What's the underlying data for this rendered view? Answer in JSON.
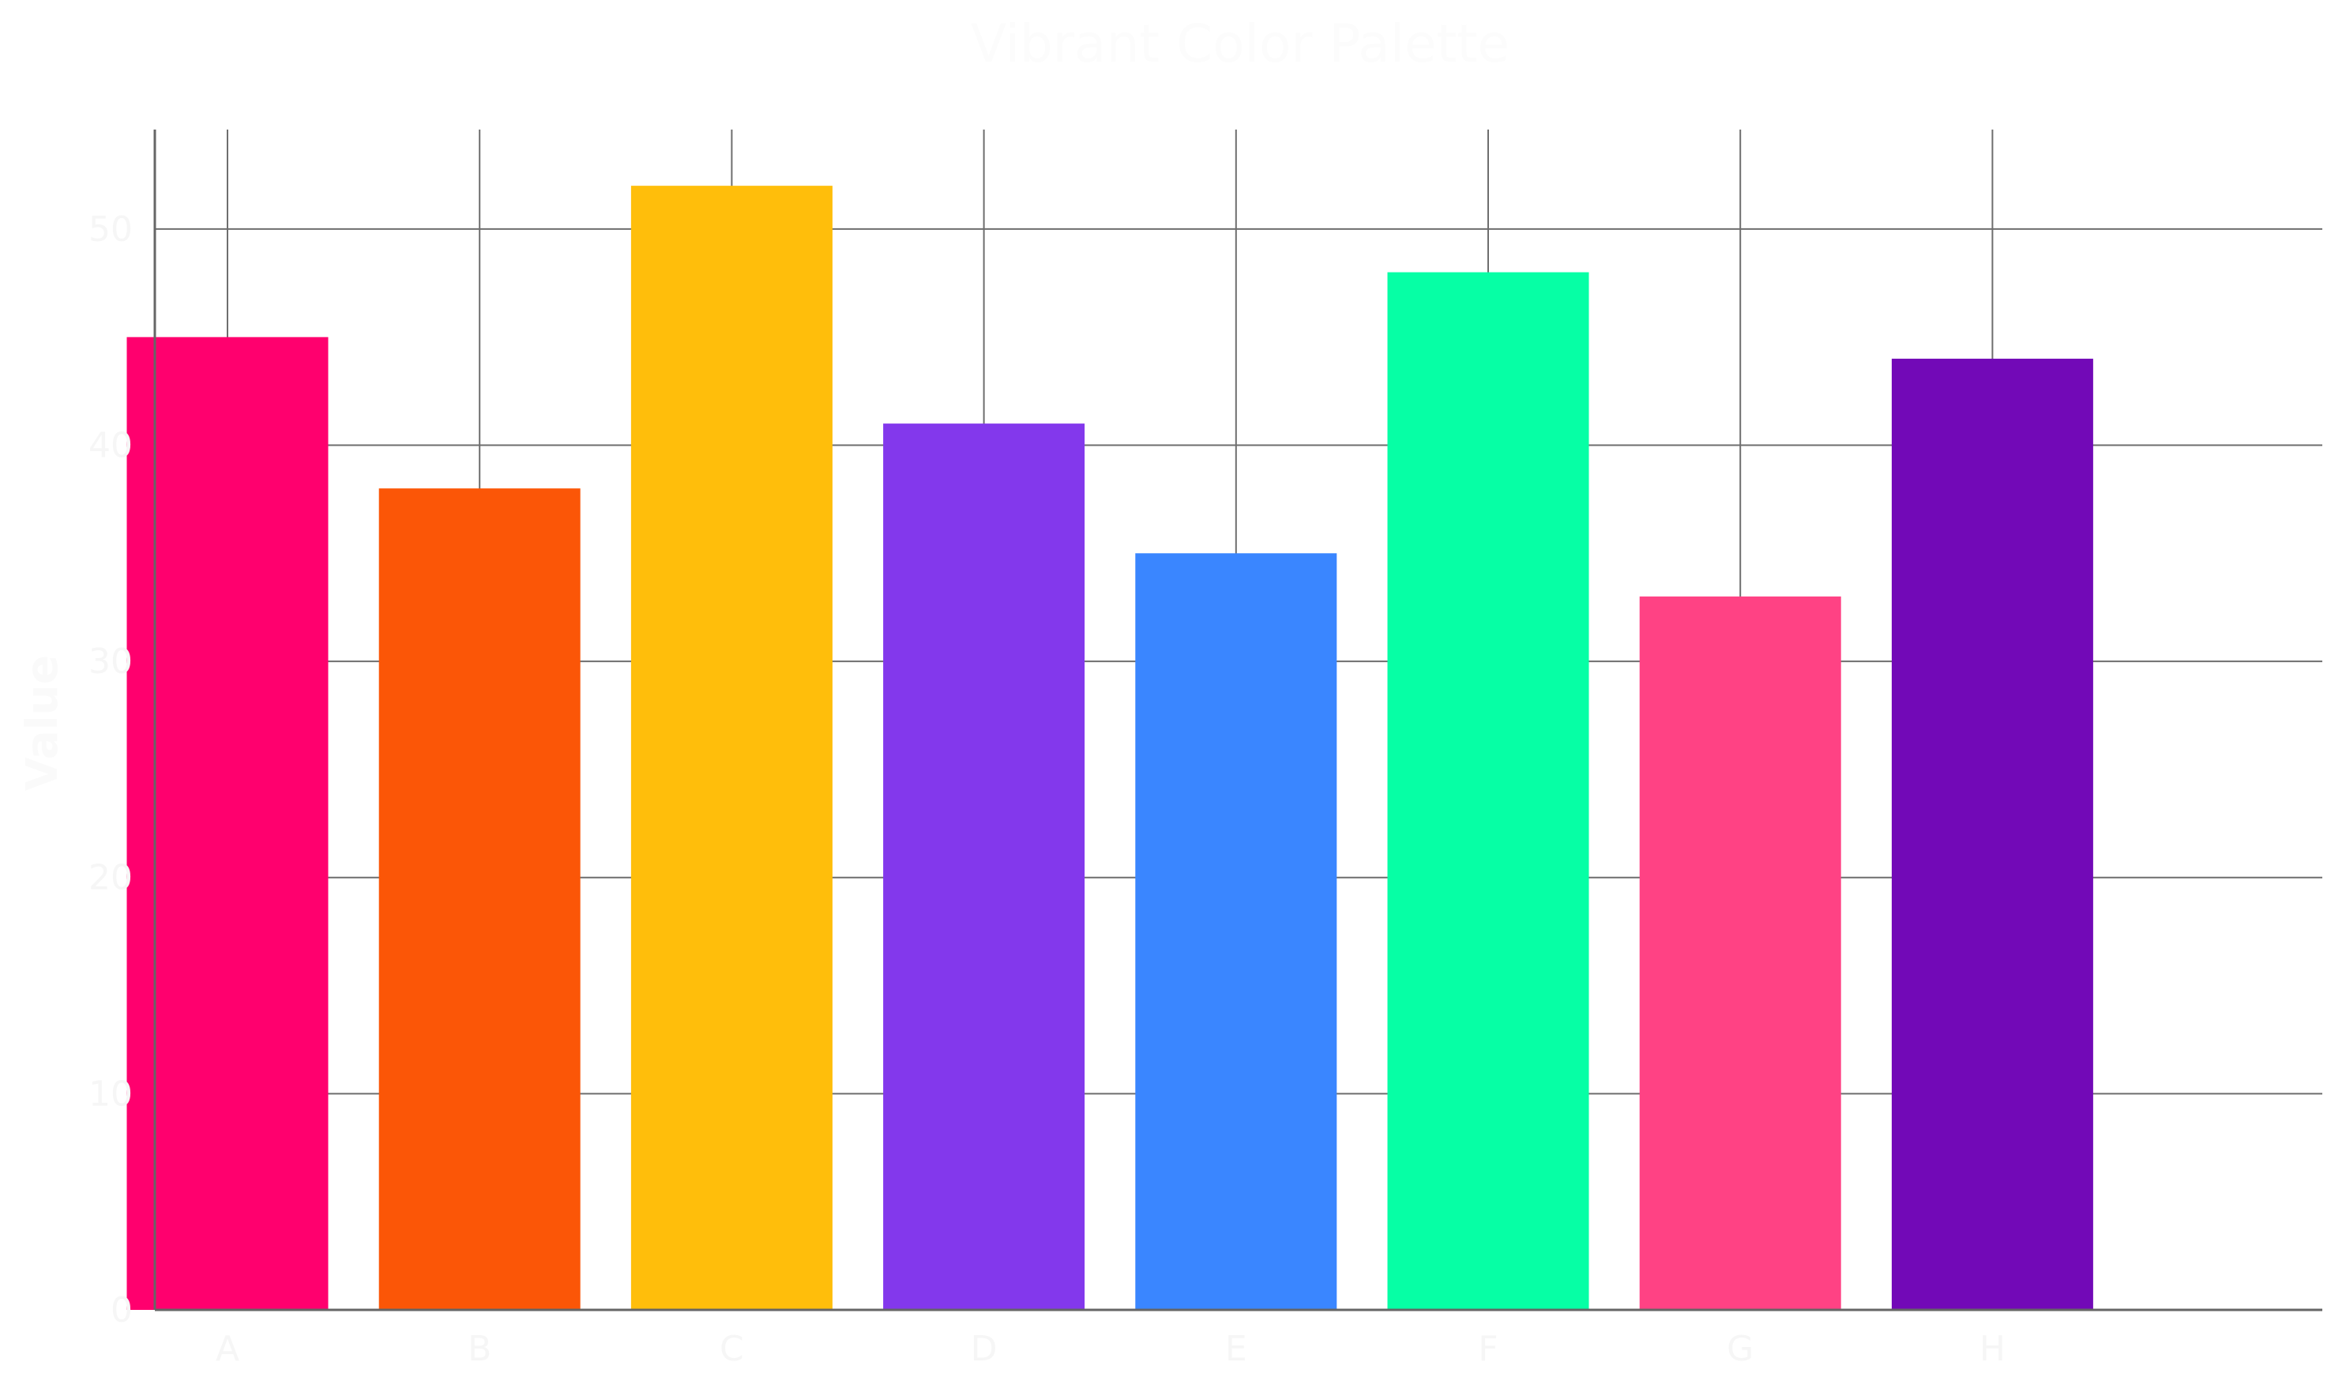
{
  "chart_data": {
    "type": "bar",
    "title": "Vibrant Color Palette",
    "xlabel": "",
    "ylabel": "Value",
    "categories": [
      "A",
      "B",
      "C",
      "D",
      "E",
      "F",
      "G",
      "H"
    ],
    "values": [
      45,
      38,
      52,
      41,
      35,
      48,
      33,
      44
    ],
    "colors": [
      "#ff006e",
      "#fb5607",
      "#ffbe0b",
      "#8338ec",
      "#3a86ff",
      "#06ffa5",
      "#ff4284",
      "#7209b7"
    ],
    "ylim": [
      0,
      54.6
    ],
    "yticks": [
      0,
      10,
      20,
      30,
      40,
      50
    ],
    "grid": true,
    "legend": "none"
  }
}
